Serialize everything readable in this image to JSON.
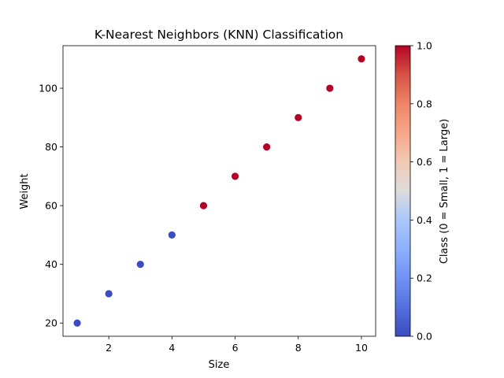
{
  "chart_data": {
    "type": "scatter",
    "title": "K-Nearest Neighbors (KNN) Classification",
    "xlabel": "Size",
    "ylabel": "Weight",
    "xlim": [
      0.55,
      10.45
    ],
    "ylim": [
      15.5,
      114.5
    ],
    "xticks": [
      2,
      4,
      6,
      8,
      10
    ],
    "yticks": [
      20,
      40,
      60,
      80,
      100
    ],
    "grid": false,
    "points": [
      {
        "x": 1,
        "y": 20,
        "class": 0
      },
      {
        "x": 2,
        "y": 30,
        "class": 0
      },
      {
        "x": 3,
        "y": 40,
        "class": 0
      },
      {
        "x": 4,
        "y": 50,
        "class": 0
      },
      {
        "x": 5,
        "y": 60,
        "class": 1
      },
      {
        "x": 6,
        "y": 70,
        "class": 1
      },
      {
        "x": 7,
        "y": 80,
        "class": 1
      },
      {
        "x": 8,
        "y": 90,
        "class": 1
      },
      {
        "x": 9,
        "y": 100,
        "class": 1
      },
      {
        "x": 10,
        "y": 110,
        "class": 1
      }
    ],
    "colorbar": {
      "label": "Class (0 = Small, 1 = Large)",
      "range": [
        0.0,
        1.0
      ],
      "ticks": [
        "0.0",
        "0.2",
        "0.4",
        "0.6",
        "0.8",
        "1.0"
      ],
      "colormap": "coolwarm"
    },
    "colors": {
      "class_0": "#3b4cc0",
      "class_1": "#b40426"
    }
  }
}
